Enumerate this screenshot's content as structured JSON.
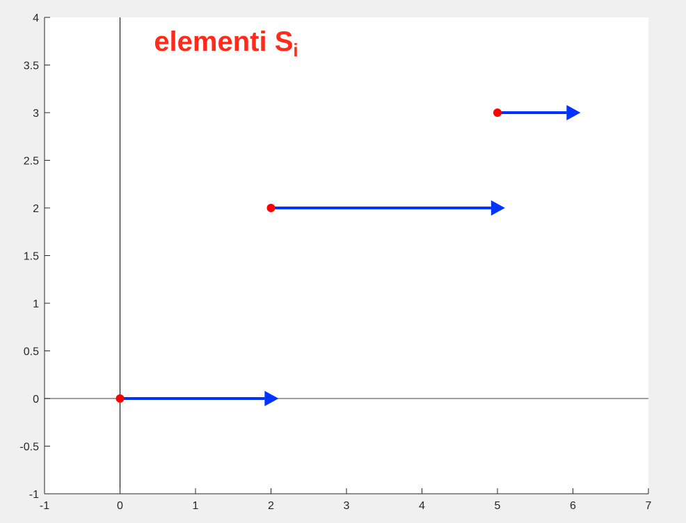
{
  "chart_data": {
    "type": "scatter",
    "title": "",
    "xlabel": "",
    "ylabel": "",
    "xlim": [
      -1,
      7
    ],
    "ylim": [
      -1,
      4
    ],
    "grid": false,
    "xticks": [
      -1,
      0,
      1,
      2,
      3,
      4,
      5,
      6,
      7
    ],
    "yticks": [
      -1,
      -0.5,
      0,
      0.5,
      1,
      1.5,
      2,
      2.5,
      3,
      3.5,
      4
    ],
    "xtick_labels": [
      "-1",
      "0",
      "1",
      "2",
      "3",
      "4",
      "5",
      "6",
      "7"
    ],
    "ytick_labels": [
      "-1",
      "-0.5",
      "0",
      "0.5",
      "1",
      "1.5",
      "2",
      "2.5",
      "3",
      "3.5",
      "4"
    ],
    "zero_lines": {
      "x": 0,
      "y": 0
    },
    "points": [
      {
        "x": 0,
        "y": 0
      },
      {
        "x": 2,
        "y": 2
      },
      {
        "x": 5,
        "y": 3
      }
    ],
    "arrows": [
      {
        "x": 0,
        "y": 0,
        "dx": 2.1,
        "dy": 0
      },
      {
        "x": 2,
        "y": 2,
        "dx": 3.1,
        "dy": 0
      },
      {
        "x": 5,
        "y": 3,
        "dx": 1.1,
        "dy": 0
      }
    ],
    "annotation": {
      "text": "elementi S",
      "subscript": "i",
      "x": 0.45,
      "y": 3.65
    },
    "colors": {
      "points": "#ff0000",
      "arrows": "#0033ff",
      "annotation": "#ff2a1a",
      "axes": "#262626",
      "zero_x_line": "#000000",
      "zero_y_line": "#808080",
      "plot_background": "#ffffff",
      "figure_background": "#f0f0f0"
    }
  }
}
